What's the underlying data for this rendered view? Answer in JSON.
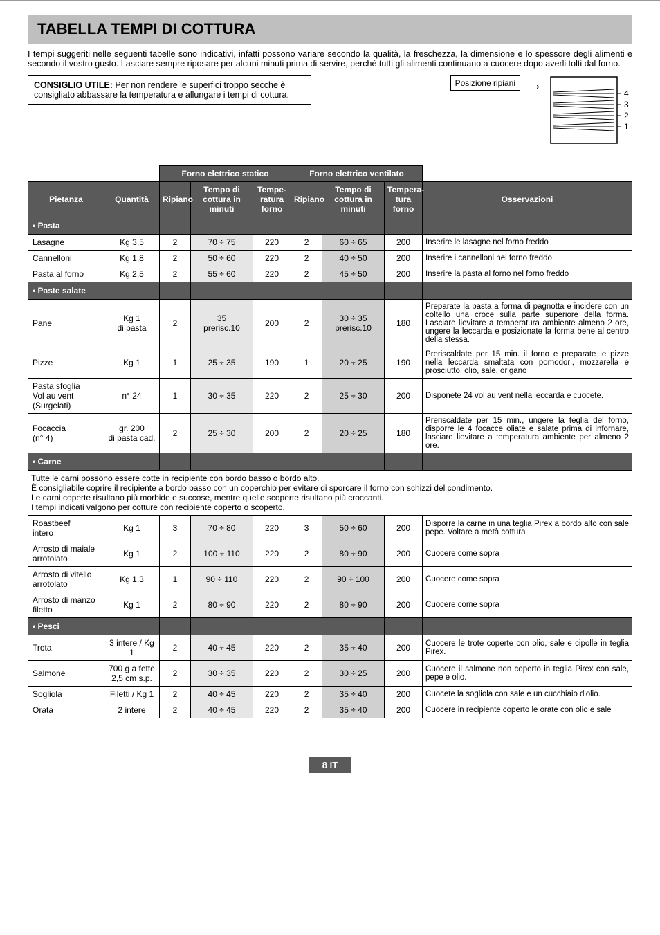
{
  "title": "TABELLA TEMPI DI COTTURA",
  "intro": "I tempi suggeriti nelle seguenti tabelle sono indicativi, infatti possono variare secondo la qualità, la freschezza, la dimensione e lo spessore degli alimenti e secondo il vostro gusto. Lasciare sempre riposare per alcuni minuti prima di servire, perché tutti gli alimenti continuano a cuocere dopo averli tolti dal forno.",
  "tip": {
    "label": "CONSIGLIO UTILE:",
    "text": " Per non rendere le superfici troppo secche è consigliato abbassare la temperatura e allungare i tempi di cottura."
  },
  "shelf_label": "Posizione ripiani",
  "shelf_numbers": [
    "4",
    "3",
    "2",
    "1"
  ],
  "colors": {
    "header_bg": "#5a5a5a",
    "header_fg": "#ffffff",
    "shade_static": "#e6e6e6",
    "shade_vent": "#d0d0d0",
    "title_bg": "#bfbfbf"
  },
  "table": {
    "group_headers": {
      "static": "Forno elettrico statico",
      "vent": "Forno elettrico ventilato"
    },
    "columns": {
      "dish": "Pietanza",
      "qty": "Quantità",
      "s_shelf": "Ripiano",
      "s_time": "Tempo di cottura in minuti",
      "s_temp": "Tempe-ratura forno",
      "v_shelf": "Ripiano",
      "v_time": "Tempo di cottura in minuti",
      "v_temp": "Tempera-tura forno",
      "obs": "Osservazioni"
    },
    "sections": [
      {
        "title": "• Pasta",
        "rows": [
          {
            "dish": "Lasagne",
            "qty": "Kg 3,5",
            "sr": "2",
            "st": "70 ÷ 75",
            "stp": "220",
            "vr": "2",
            "vt": "60 ÷ 65",
            "vtp": "200",
            "obs": "Inserire le lasagne nel forno freddo"
          },
          {
            "dish": "Cannelloni",
            "qty": "Kg 1,8",
            "sr": "2",
            "st": "50 ÷ 60",
            "stp": "220",
            "vr": "2",
            "vt": "40 ÷ 50",
            "vtp": "200",
            "obs": "Inserire i cannelloni nel forno freddo"
          },
          {
            "dish": "Pasta al forno",
            "qty": "Kg 2,5",
            "sr": "2",
            "st": "55 ÷ 60",
            "stp": "220",
            "vr": "2",
            "vt": "45 ÷ 50",
            "vtp": "200",
            "obs": "Inserire la pasta al forno nel forno freddo"
          }
        ]
      },
      {
        "title": "• Paste salate",
        "rows": [
          {
            "dish": "Pane",
            "qty": "Kg 1\ndi pasta",
            "sr": "2",
            "st": "35\nprerisc.10",
            "stp": "200",
            "vr": "2",
            "vt": "30 ÷ 35\nprerisc.10",
            "vtp": "180",
            "obs": "Preparate la pasta a forma di pagnotta e incidere con un coltello una croce sulla parte superiore della forma. Lasciare lievitare a temperatura ambiente almeno 2 ore, ungere la leccarda e posizionate la forma bene al centro della stessa."
          },
          {
            "dish": "Pizze",
            "qty": "Kg 1",
            "sr": "1",
            "st": "25 ÷ 35",
            "stp": "190",
            "vr": "1",
            "vt": "20 ÷ 25",
            "vtp": "190",
            "obs": "Preriscaldate per 15 min. il forno e preparate le pizze nella leccarda smaltata con pomodori, mozzarella e prosciutto, olio, sale, origano"
          },
          {
            "dish": "Pasta sfoglia\nVol au vent\n(Surgelati)",
            "qty": "n° 24",
            "sr": "1",
            "st": "30 ÷ 35",
            "stp": "220",
            "vr": "2",
            "vt": "25 ÷ 30",
            "vtp": "200",
            "obs": "Disponete 24 vol au vent nella leccarda e cuocete."
          },
          {
            "dish": "Focaccia\n(n° 4)",
            "qty": "gr. 200\ndi pasta cad.",
            "sr": "2",
            "st": "25 ÷ 30",
            "stp": "200",
            "vr": "2",
            "vt": "20 ÷ 25",
            "vtp": "180",
            "obs": "Preriscaldate per 15 min., ungere la teglia del forno, disporre le 4 focacce oliate e salate prima di infornare, lasciare lievitare a temperatura ambiente per almeno 2 ore."
          }
        ]
      },
      {
        "title": "• Carne",
        "note": "Tutte le carni possono essere cotte in recipiente con bordo basso o bordo alto.\nÈ consigliabile coprire il recipiente a bordo basso con un coperchio per evitare di sporcare il forno con schizzi del condimento.\nLe carni coperte risultano più morbide e succose, mentre quelle scoperte risultano più croccanti.\nI tempi indicati valgono per cotture con recipiente coperto o scoperto.",
        "rows": [
          {
            "dish": "Roastbeef\nintero",
            "qty": "Kg 1",
            "sr": "3",
            "st": "70 ÷ 80",
            "stp": "220",
            "vr": "3",
            "vt": "50 ÷ 60",
            "vtp": "200",
            "obs": "Disporre la carne in una teglia Pirex a bordo alto con sale pepe. Voltare a metà cottura"
          },
          {
            "dish": "Arrosto di maiale\narrotolato",
            "qty": "Kg 1",
            "sr": "2",
            "st": "100 ÷ 110",
            "stp": "220",
            "vr": "2",
            "vt": "80 ÷ 90",
            "vtp": "200",
            "obs": "Cuocere come sopra"
          },
          {
            "dish": "Arrosto di vitello\narrotolato",
            "qty": "Kg 1,3",
            "sr": "1",
            "st": "90 ÷ 110",
            "stp": "220",
            "vr": "2",
            "vt": "90 ÷ 100",
            "vtp": "200",
            "obs": "Cuocere come sopra"
          },
          {
            "dish": "Arrosto di manzo\nfiletto",
            "qty": "Kg 1",
            "sr": "2",
            "st": "80 ÷ 90",
            "stp": "220",
            "vr": "2",
            "vt": "80 ÷ 90",
            "vtp": "200",
            "obs": "Cuocere come sopra"
          }
        ]
      },
      {
        "title": "• Pesci",
        "rows": [
          {
            "dish": "Trota",
            "qty": "3 intere / Kg 1",
            "sr": "2",
            "st": "40 ÷ 45",
            "stp": "220",
            "vr": "2",
            "vt": "35 ÷ 40",
            "vtp": "200",
            "obs": "Cuocere le trote coperte con olio, sale e cipolle in teglia Pirex."
          },
          {
            "dish": "Salmone",
            "qty": "700 g a fette\n2,5 cm s.p.",
            "sr": "2",
            "st": "30 ÷ 35",
            "stp": "220",
            "vr": "2",
            "vt": "30 ÷ 25",
            "vtp": "200",
            "obs": "Cuocere il salmone non coperto in teglia Pirex con sale, pepe e olio."
          },
          {
            "dish": "Sogliola",
            "qty": "Filetti / Kg 1",
            "sr": "2",
            "st": "40 ÷ 45",
            "stp": "220",
            "vr": "2",
            "vt": "35 ÷ 40",
            "vtp": "200",
            "obs": "Cuocete la sogliola con sale e un cucchiaio d'olio."
          },
          {
            "dish": "Orata",
            "qty": "2 intere",
            "sr": "2",
            "st": "40 ÷ 45",
            "stp": "220",
            "vr": "2",
            "vt": "35 ÷ 40",
            "vtp": "200",
            "obs": "Cuocere in recipiente coperto le orate con olio e sale"
          }
        ]
      }
    ]
  },
  "footer": "8 IT"
}
